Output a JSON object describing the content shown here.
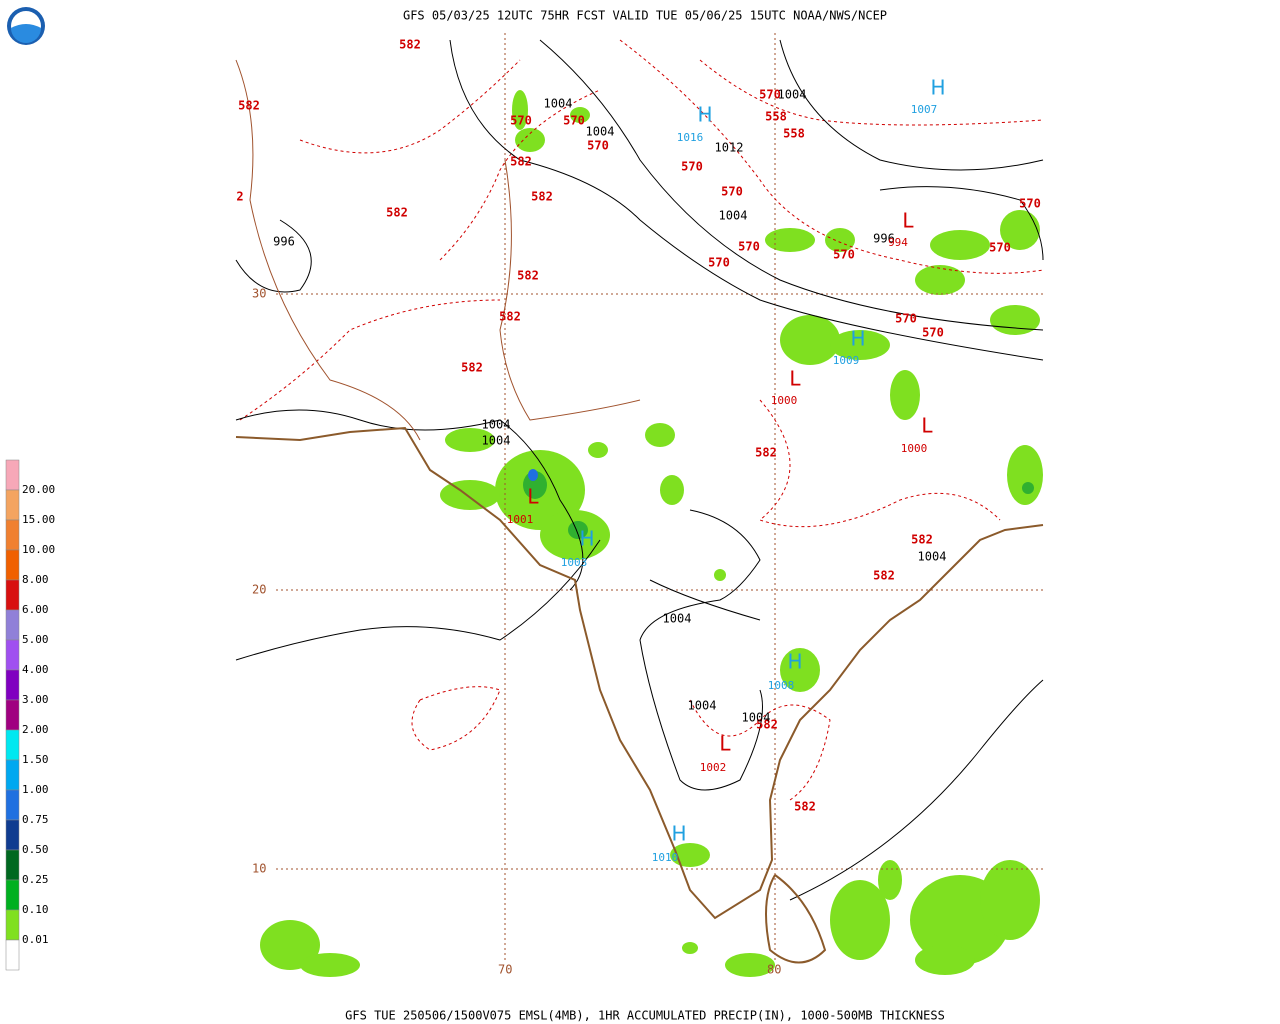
{
  "header": {
    "title": "GFS 05/03/25 12UTC 75HR FCST VALID TUE 05/06/25 15UTC NOAA/NWS/NCEP"
  },
  "footer": {
    "caption": "GFS TUE 250506/1500V075 EMSL(4MB), 1HR ACCUMULATED PRECIP(IN), 1000-500MB THICKNESS"
  },
  "legend": {
    "labels": [
      "20.00",
      "15.00",
      "10.00",
      "8.00",
      "6.00",
      "5.00",
      "4.00",
      "3.00",
      "2.00",
      "1.50",
      "1.00",
      "0.75",
      "0.50",
      "0.25",
      "0.10",
      "0.01"
    ],
    "colors": [
      "#f7a8b8",
      "#f4a460",
      "#f08030",
      "#f06000",
      "#d81010",
      "#9080d8",
      "#a050f0",
      "#8000c0",
      "#a00080",
      "#00e8f0",
      "#00a8f0",
      "#2070e0",
      "#103c90",
      "#006820",
      "#00b020",
      "#80e020",
      "#ffffff"
    ]
  },
  "grid": {
    "latitudes": [
      "30",
      "20",
      "10"
    ],
    "longitudes": [
      "70",
      "80"
    ]
  },
  "map": {
    "thickness_labels": [
      "582",
      "582",
      "570",
      "570",
      "570",
      "582",
      "582",
      "582",
      "570",
      "570",
      "570",
      "570",
      "582",
      "582",
      "582",
      "570",
      "558",
      "558",
      "570",
      "570",
      "570",
      "570",
      "570",
      "582",
      "582",
      "582",
      "582",
      "582",
      "2"
    ],
    "isobar_labels": [
      "1004",
      "1004",
      "1004",
      "1012",
      "1004",
      "996",
      "996",
      "1004",
      "1004",
      "1004",
      "1004",
      "1004",
      "1004"
    ],
    "highs": [
      {
        "symbol": "H",
        "value": "1016"
      },
      {
        "symbol": "H",
        "value": "1007"
      },
      {
        "symbol": "H",
        "value": "1009"
      },
      {
        "symbol": "H",
        "value": "1003"
      },
      {
        "symbol": "H",
        "value": "1008"
      },
      {
        "symbol": "H",
        "value": "1010"
      }
    ],
    "lows": [
      {
        "symbol": "L",
        "value": "994"
      },
      {
        "symbol": "L",
        "value": "1000"
      },
      {
        "symbol": "L",
        "value": "1000"
      },
      {
        "symbol": "L",
        "value": "1001"
      },
      {
        "symbol": "L",
        "value": "1002"
      }
    ]
  }
}
